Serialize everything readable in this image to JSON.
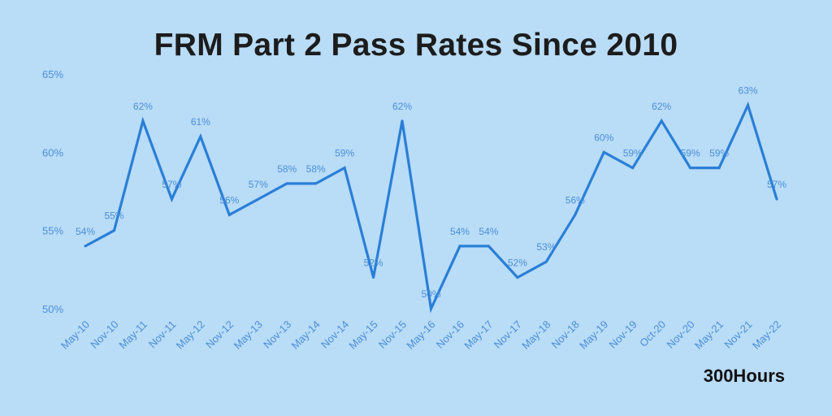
{
  "brand": "300Hours",
  "colors": {
    "background": "#b9dcf7",
    "line": "#2a7fd6",
    "text": "#4a8fd9",
    "title": "#1c1c1c"
  },
  "chart_data": {
    "type": "line",
    "title": "FRM Part 2 Pass Rates Since 2010",
    "xlabel": "",
    "ylabel": "",
    "ylim": [
      50,
      65
    ],
    "yticks": [
      "50%",
      "55%",
      "60%",
      "65%"
    ],
    "ytick_values": [
      50,
      55,
      60,
      65
    ],
    "grid": false,
    "categories": [
      "May-10",
      "Nov-10",
      "May-11",
      "Nov-11",
      "May-12",
      "Nov-12",
      "May-13",
      "Nov-13",
      "May-14",
      "Nov-14",
      "May-15",
      "Nov-15",
      "May-16",
      "Nov-16",
      "May-17",
      "Nov-17",
      "May-18",
      "Nov-18",
      "May-19",
      "Nov-19",
      "Oct-20",
      "Nov-20",
      "May-21",
      "Nov-21",
      "May-22"
    ],
    "values": [
      54,
      55,
      62,
      57,
      61,
      56,
      57,
      58,
      58,
      59,
      52,
      62,
      50,
      54,
      54,
      52,
      53,
      56,
      60,
      59,
      62,
      59,
      59,
      63,
      57
    ],
    "point_labels": [
      "54%",
      "55%",
      "62%",
      "57%",
      "61%",
      "56%",
      "57%",
      "58%",
      "58%",
      "59%",
      "52%",
      "62%",
      "50%",
      "54%",
      "54%",
      "52%",
      "53%",
      "56%",
      "60%",
      "59%",
      "62%",
      "59%",
      "59%",
      "63%",
      "57%"
    ]
  }
}
